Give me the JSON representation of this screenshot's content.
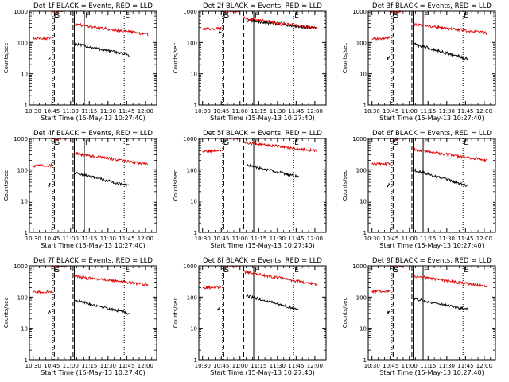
{
  "colors": {
    "events": "#000000",
    "lld": "#dd0000",
    "axis": "#000000"
  },
  "chart_data": [
    {
      "type": "line",
      "title": "Det 1f BLACK = Events, RED = LLD",
      "xlabel": "Start Time (15-May-13 10:27:40)",
      "ylabel": "Counts/sec",
      "yscale": "log",
      "ylim": [
        1,
        1000
      ],
      "x_ticks": [
        "10:30",
        "10:45",
        "11:00",
        "11:15",
        "11:30",
        "11:45",
        "12:00"
      ],
      "y_ticks": [
        "1",
        "10",
        "100",
        "1000"
      ],
      "markers": [
        {
          "time": "10:46",
          "label": "E",
          "style": "dotted"
        },
        {
          "time": "10:47",
          "label": "S",
          "style": "dashed"
        },
        {
          "time": "11:02",
          "label": "",
          "style": "dashed"
        },
        {
          "time": "11:03",
          "label": "",
          "style": "solid"
        },
        {
          "time": "11:11",
          "label": "F",
          "style": "solid"
        },
        {
          "time": "11:43",
          "label": "E",
          "style": "dotted"
        }
      ],
      "series": [
        {
          "name": "BLACK = Events",
          "color": "#000000",
          "segments": [
            {
              "from": "10:42",
              "to": "10:44",
              "start": 30,
              "end": 35
            },
            {
              "from": "11:03",
              "to": "11:47",
              "start": 90,
              "end": 40
            }
          ]
        },
        {
          "name": "RED = LLD",
          "color": "#dd0000",
          "segments": [
            {
              "from": "10:30",
              "to": "10:45",
              "start": 130,
              "end": 140
            },
            {
              "from": "10:45",
              "to": "10:57",
              "start": 1000,
              "end": 1000
            },
            {
              "from": "11:03",
              "to": "12:02",
              "start": 380,
              "end": 180
            }
          ]
        }
      ]
    },
    {
      "type": "line",
      "title": "Det 2f BLACK = Events, RED = LLD",
      "xlabel": "Start Time (15-May-13 10:27:40)",
      "ylabel": "Counts/sec",
      "yscale": "log",
      "ylim": [
        1,
        1000
      ],
      "x_ticks": [
        "10:30",
        "10:45",
        "11:00",
        "11:15",
        "11:30",
        "11:45",
        "12:00"
      ],
      "y_ticks": [
        "1",
        "10",
        "100",
        "1000"
      ],
      "markers": [
        {
          "time": "10:46",
          "label": "E",
          "style": "dotted"
        },
        {
          "time": "10:47",
          "label": "S",
          "style": "dashed"
        },
        {
          "time": "11:03",
          "label": "",
          "style": "dashed"
        },
        {
          "time": "11:11",
          "label": "F",
          "style": "solid"
        },
        {
          "time": "11:43",
          "label": "E",
          "style": "dotted"
        }
      ],
      "series": [
        {
          "name": "BLACK = Events",
          "color": "#000000",
          "segments": [
            {
              "from": "10:43",
              "to": "10:45",
              "start": 200,
              "end": 200
            },
            {
              "from": "11:05",
              "to": "12:02",
              "start": 500,
              "end": 280
            }
          ]
        },
        {
          "name": "RED = LLD",
          "color": "#dd0000",
          "segments": [
            {
              "from": "10:30",
              "to": "10:45",
              "start": 260,
              "end": 290
            },
            {
              "from": "10:45",
              "to": "11:00",
              "start": 1000,
              "end": 1000
            },
            {
              "from": "11:03",
              "to": "12:02",
              "start": 600,
              "end": 280
            }
          ]
        }
      ]
    },
    {
      "type": "line",
      "title": "Det 3f BLACK = Events, RED = LLD",
      "xlabel": "Start Time (15-May-13 10:27:40)",
      "ylabel": "Counts/sec",
      "yscale": "log",
      "ylim": [
        1,
        1000
      ],
      "x_ticks": [
        "10:30",
        "10:45",
        "11:00",
        "11:15",
        "11:30",
        "11:45",
        "12:00"
      ],
      "y_ticks": [
        "1",
        "10",
        "100",
        "1000"
      ],
      "markers": [
        {
          "time": "10:46",
          "label": "E",
          "style": "dotted"
        },
        {
          "time": "10:47",
          "label": "S",
          "style": "dashed"
        },
        {
          "time": "11:02",
          "label": "",
          "style": "dashed"
        },
        {
          "time": "11:03",
          "label": "",
          "style": "solid"
        },
        {
          "time": "11:11",
          "label": "F",
          "style": "solid"
        },
        {
          "time": "11:43",
          "label": "E",
          "style": "dotted"
        }
      ],
      "series": [
        {
          "name": "BLACK = Events",
          "color": "#000000",
          "segments": [
            {
              "from": "10:42",
              "to": "10:44",
              "start": 30,
              "end": 35
            },
            {
              "from": "11:03",
              "to": "11:47",
              "start": 90,
              "end": 30
            }
          ]
        },
        {
          "name": "RED = LLD",
          "color": "#dd0000",
          "segments": [
            {
              "from": "10:30",
              "to": "10:45",
              "start": 130,
              "end": 140
            },
            {
              "from": "10:45",
              "to": "10:57",
              "start": 1000,
              "end": 1000
            },
            {
              "from": "11:03",
              "to": "12:02",
              "start": 380,
              "end": 200
            }
          ]
        }
      ]
    },
    {
      "type": "line",
      "title": "Det 4f BLACK = Events, RED = LLD",
      "xlabel": "Start Time (15-May-13 10:27:40)",
      "ylabel": "Counts/sec",
      "yscale": "log",
      "ylim": [
        1,
        1000
      ],
      "x_ticks": [
        "10:30",
        "10:45",
        "11:00",
        "11:15",
        "11:30",
        "11:45",
        "12:00"
      ],
      "y_ticks": [
        "1",
        "10",
        "100",
        "1000"
      ],
      "markers": [
        {
          "time": "10:46",
          "label": "E",
          "style": "dotted"
        },
        {
          "time": "10:47",
          "label": "S",
          "style": "dashed"
        },
        {
          "time": "11:02",
          "label": "",
          "style": "dashed"
        },
        {
          "time": "11:03",
          "label": "",
          "style": "solid"
        },
        {
          "time": "11:11",
          "label": "F",
          "style": "solid"
        },
        {
          "time": "11:43",
          "label": "E",
          "style": "dotted"
        }
      ],
      "series": [
        {
          "name": "BLACK = Events",
          "color": "#000000",
          "segments": [
            {
              "from": "10:42",
              "to": "10:44",
              "start": 30,
              "end": 35
            },
            {
              "from": "11:03",
              "to": "11:47",
              "start": 80,
              "end": 30
            }
          ]
        },
        {
          "name": "RED = LLD",
          "color": "#dd0000",
          "segments": [
            {
              "from": "10:30",
              "to": "10:45",
              "start": 130,
              "end": 140
            },
            {
              "from": "10:45",
              "to": "10:57",
              "start": 1000,
              "end": 1000
            },
            {
              "from": "11:03",
              "to": "12:02",
              "start": 330,
              "end": 150
            }
          ]
        }
      ]
    },
    {
      "type": "line",
      "title": "Det 5f BLACK = Events, RED = LLD",
      "xlabel": "Start Time (15-May-13 10:27:40)",
      "ylabel": "Counts/sec",
      "yscale": "log",
      "ylim": [
        1,
        1000
      ],
      "x_ticks": [
        "10:30",
        "10:45",
        "11:00",
        "11:15",
        "11:30",
        "11:45",
        "12:00"
      ],
      "y_ticks": [
        "1",
        "10",
        "100",
        "1000"
      ],
      "markers": [
        {
          "time": "10:46",
          "label": "E",
          "style": "dotted"
        },
        {
          "time": "10:47",
          "label": "S",
          "style": "dashed"
        },
        {
          "time": "11:03",
          "label": "",
          "style": "dashed"
        },
        {
          "time": "11:11",
          "label": "F",
          "style": "solid"
        },
        {
          "time": "11:43",
          "label": "E",
          "style": "dotted"
        }
      ],
      "series": [
        {
          "name": "BLACK = Events",
          "color": "#000000",
          "segments": [
            {
              "from": "11:05",
              "to": "11:47",
              "start": 140,
              "end": 60
            }
          ]
        },
        {
          "name": "RED = LLD",
          "color": "#dd0000",
          "segments": [
            {
              "from": "10:30",
              "to": "10:45",
              "start": 400,
              "end": 420
            },
            {
              "from": "10:45",
              "to": "11:00",
              "start": 1000,
              "end": 1000
            },
            {
              "from": "11:03",
              "to": "12:02",
              "start": 750,
              "end": 400
            }
          ]
        }
      ]
    },
    {
      "type": "line",
      "title": "Det 6f BLACK = Events, RED = LLD",
      "xlabel": "Start Time (15-May-13 10:27:40)",
      "ylabel": "Counts/sec",
      "yscale": "log",
      "ylim": [
        1,
        1000
      ],
      "x_ticks": [
        "10:30",
        "10:45",
        "11:00",
        "11:15",
        "11:30",
        "11:45",
        "12:00"
      ],
      "y_ticks": [
        "1",
        "10",
        "100",
        "1000"
      ],
      "markers": [
        {
          "time": "10:46",
          "label": "E",
          "style": "dotted"
        },
        {
          "time": "10:47",
          "label": "S",
          "style": "dashed"
        },
        {
          "time": "11:02",
          "label": "",
          "style": "dashed"
        },
        {
          "time": "11:03",
          "label": "",
          "style": "solid"
        },
        {
          "time": "11:11",
          "label": "F",
          "style": "solid"
        },
        {
          "time": "11:43",
          "label": "E",
          "style": "dotted"
        }
      ],
      "series": [
        {
          "name": "BLACK = Events",
          "color": "#000000",
          "segments": [
            {
              "from": "10:42",
              "to": "10:44",
              "start": 30,
              "end": 35
            },
            {
              "from": "11:03",
              "to": "11:47",
              "start": 100,
              "end": 30
            }
          ]
        },
        {
          "name": "RED = LLD",
          "color": "#dd0000",
          "segments": [
            {
              "from": "10:30",
              "to": "10:45",
              "start": 150,
              "end": 160
            },
            {
              "from": "10:45",
              "to": "10:57",
              "start": 1000,
              "end": 1000
            },
            {
              "from": "11:03",
              "to": "12:02",
              "start": 450,
              "end": 200
            }
          ]
        }
      ]
    },
    {
      "type": "line",
      "title": "Det 7f BLACK = Events, RED = LLD",
      "xlabel": "Start Time (15-May-13 10:27:40)",
      "ylabel": "Counts/sec",
      "yscale": "log",
      "ylim": [
        1,
        1000
      ],
      "x_ticks": [
        "10:30",
        "10:45",
        "11:00",
        "11:15",
        "11:30",
        "11:45",
        "12:00"
      ],
      "y_ticks": [
        "1",
        "10",
        "100",
        "1000"
      ],
      "markers": [
        {
          "time": "10:46",
          "label": "E",
          "style": "dotted"
        },
        {
          "time": "10:47",
          "label": "S",
          "style": "dashed"
        },
        {
          "time": "11:02",
          "label": "",
          "style": "dashed"
        },
        {
          "time": "11:03",
          "label": "",
          "style": "solid"
        },
        {
          "time": "11:43",
          "label": "E",
          "style": "dotted"
        }
      ],
      "series": [
        {
          "name": "BLACK = Events",
          "color": "#000000",
          "segments": [
            {
              "from": "10:42",
              "to": "10:44",
              "start": 30,
              "end": 35
            },
            {
              "from": "11:03",
              "to": "11:47",
              "start": 80,
              "end": 30
            }
          ]
        },
        {
          "name": "RED = LLD",
          "color": "#dd0000",
          "segments": [
            {
              "from": "10:30",
              "to": "10:45",
              "start": 140,
              "end": 150
            },
            {
              "from": "10:45",
              "to": "10:57",
              "start": 1000,
              "end": 1000
            },
            {
              "from": "11:03",
              "to": "12:02",
              "start": 450,
              "end": 250
            }
          ]
        }
      ]
    },
    {
      "type": "line",
      "title": "Det 8f BLACK = Events, RED = LLD",
      "xlabel": "Start Time (15-May-13 10:27:40)",
      "ylabel": "Counts/sec",
      "yscale": "log",
      "ylim": [
        1,
        1000
      ],
      "x_ticks": [
        "10:30",
        "10:45",
        "11:00",
        "11:15",
        "11:30",
        "11:45",
        "12:00"
      ],
      "y_ticks": [
        "1",
        "10",
        "100",
        "1000"
      ],
      "markers": [
        {
          "time": "10:46",
          "label": "E",
          "style": "dotted"
        },
        {
          "time": "10:47",
          "label": "S",
          "style": "dashed"
        },
        {
          "time": "11:03",
          "label": "",
          "style": "dashed"
        },
        {
          "time": "11:11",
          "label": "F",
          "style": "solid"
        },
        {
          "time": "11:43",
          "label": "E",
          "style": "dotted"
        }
      ],
      "series": [
        {
          "name": "BLACK = Events",
          "color": "#000000",
          "segments": [
            {
              "from": "10:42",
              "to": "10:44",
              "start": 40,
              "end": 45
            },
            {
              "from": "11:05",
              "to": "11:47",
              "start": 110,
              "end": 40
            }
          ]
        },
        {
          "name": "RED = LLD",
          "color": "#dd0000",
          "segments": [
            {
              "from": "10:30",
              "to": "10:45",
              "start": 200,
              "end": 210
            },
            {
              "from": "10:45",
              "to": "11:00",
              "start": 1000,
              "end": 1000
            },
            {
              "from": "11:03",
              "to": "12:02",
              "start": 650,
              "end": 250
            }
          ]
        }
      ]
    },
    {
      "type": "line",
      "title": "Det 9f BLACK = Events, RED = LLD",
      "xlabel": "Start Time (15-May-13 10:27:40)",
      "ylabel": "Counts/sec",
      "yscale": "log",
      "ylim": [
        1,
        1000
      ],
      "x_ticks": [
        "10:30",
        "10:45",
        "11:00",
        "11:15",
        "11:30",
        "11:45",
        "12:00"
      ],
      "y_ticks": [
        "1",
        "10",
        "100",
        "1000"
      ],
      "markers": [
        {
          "time": "10:46",
          "label": "E",
          "style": "dotted"
        },
        {
          "time": "10:47",
          "label": "S",
          "style": "dashed"
        },
        {
          "time": "11:02",
          "label": "",
          "style": "dashed"
        },
        {
          "time": "11:03",
          "label": "",
          "style": "solid"
        },
        {
          "time": "11:11",
          "label": "F",
          "style": "solid"
        },
        {
          "time": "11:43",
          "label": "E",
          "style": "dotted"
        }
      ],
      "series": [
        {
          "name": "BLACK = Events",
          "color": "#000000",
          "segments": [
            {
              "from": "10:42",
              "to": "10:44",
              "start": 30,
              "end": 35
            },
            {
              "from": "11:03",
              "to": "11:47",
              "start": 90,
              "end": 40
            }
          ]
        },
        {
          "name": "RED = LLD",
          "color": "#dd0000",
          "segments": [
            {
              "from": "10:30",
              "to": "10:45",
              "start": 150,
              "end": 160
            },
            {
              "from": "10:45",
              "to": "10:57",
              "start": 1000,
              "end": 1000
            },
            {
              "from": "11:03",
              "to": "12:02",
              "start": 480,
              "end": 220
            }
          ]
        }
      ]
    }
  ]
}
